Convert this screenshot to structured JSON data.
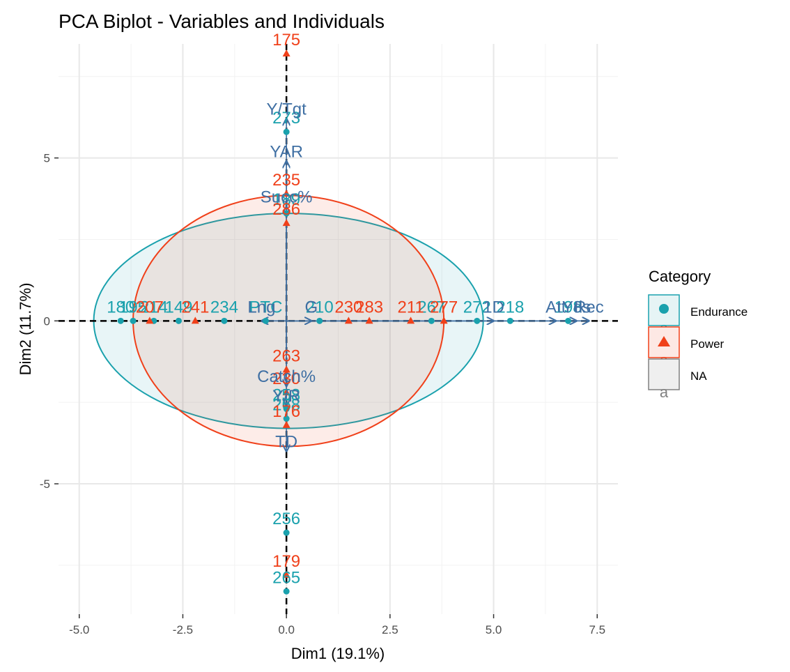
{
  "chart_data": {
    "type": "scatter",
    "title": "PCA Biplot - Variables and Individuals",
    "xlabel": "Dim1 (19.1%)",
    "ylabel": "Dim2 (11.7%)",
    "xlim": [
      -5.5,
      8.0
    ],
    "ylim": [
      -9.0,
      8.5
    ],
    "x_ticks": [
      -5.0,
      -2.5,
      0.0,
      2.5,
      5.0,
      7.5
    ],
    "x_tick_labels": [
      "-5.0",
      "-2.5",
      "0.0",
      "2.5",
      "5.0",
      "7.5"
    ],
    "y_ticks": [
      -5,
      0,
      5
    ],
    "y_tick_labels": [
      "-5",
      "0",
      "5"
    ],
    "grid": true,
    "legend": {
      "title": "Category",
      "position": "right",
      "entries": [
        {
          "name": "Endurance",
          "color": "#1aa1ad",
          "shape": "circle"
        },
        {
          "name": "Power",
          "color": "#f0401a",
          "shape": "triangle"
        },
        {
          "name": "NA",
          "color": "#808080",
          "shape": "none"
        }
      ]
    },
    "colors": {
      "Endurance": "#1aa1ad",
      "Power": "#f0401a",
      "variables": "#3f6fa3"
    },
    "ellipses": [
      {
        "group": "Endurance",
        "cx": 0.05,
        "cy": 0.0,
        "rx": 4.7,
        "ry": 3.3
      },
      {
        "group": "Power",
        "cx": 0.05,
        "cy": 0.0,
        "rx": 3.75,
        "ry": 3.85
      }
    ],
    "series": [
      {
        "name": "Endurance",
        "points": [
          {
            "x": 0.0,
            "y": 5.8,
            "label": "273"
          },
          {
            "x": 0.0,
            "y": 3.3,
            "label": "189"
          },
          {
            "x": 0.0,
            "y": -2.7,
            "label": "258"
          },
          {
            "x": 0.0,
            "y": -3.0,
            "label": "268"
          },
          {
            "x": 0.0,
            "y": -6.5,
            "label": "256"
          },
          {
            "x": 0.0,
            "y": -8.3,
            "label": "265"
          },
          {
            "x": -4.0,
            "y": 0.0,
            "label": "180"
          },
          {
            "x": -3.7,
            "y": 0.0,
            "label": "195"
          },
          {
            "x": -3.2,
            "y": 0.0,
            "label": "214"
          },
          {
            "x": -2.6,
            "y": 0.0,
            "label": "149"
          },
          {
            "x": -1.5,
            "y": 0.0,
            "label": "234"
          },
          {
            "x": -0.5,
            "y": 0.0,
            "label": "PTC"
          },
          {
            "x": 0.8,
            "y": 0.0,
            "label": "210"
          },
          {
            "x": 3.5,
            "y": 0.0,
            "label": "267"
          },
          {
            "x": 4.6,
            "y": 0.0,
            "label": "272"
          },
          {
            "x": 5.4,
            "y": 0.0,
            "label": "218"
          },
          {
            "x": 6.8,
            "y": 0.0,
            "label": "198"
          }
        ]
      },
      {
        "name": "Power",
        "points": [
          {
            "x": 0.0,
            "y": 8.2,
            "label": "175"
          },
          {
            "x": 0.0,
            "y": 3.9,
            "label": "235"
          },
          {
            "x": 0.0,
            "y": 3.0,
            "label": "286"
          },
          {
            "x": 0.0,
            "y": -1.5,
            "label": "263"
          },
          {
            "x": 0.0,
            "y": -2.2,
            "label": "230"
          },
          {
            "x": 0.0,
            "y": -3.2,
            "label": "176"
          },
          {
            "x": 0.0,
            "y": -7.8,
            "label": "179"
          },
          {
            "x": -3.3,
            "y": 0.0,
            "label": "207"
          },
          {
            "x": -2.2,
            "y": 0.0,
            "label": "241"
          },
          {
            "x": 1.5,
            "y": 0.0,
            "label": "230"
          },
          {
            "x": 2.0,
            "y": 0.0,
            "label": "283"
          },
          {
            "x": 3.0,
            "y": 0.0,
            "label": "211"
          },
          {
            "x": 3.8,
            "y": 0.0,
            "label": "277"
          }
        ]
      }
    ],
    "variables": [
      {
        "name": "Y/Tgt",
        "x": 0.0,
        "y": 6.2
      },
      {
        "name": "YAR",
        "x": 0.0,
        "y": 4.9
      },
      {
        "name": "Succ%",
        "x": 0.0,
        "y": 3.5
      },
      {
        "name": "Catch%",
        "x": 0.0,
        "y": -2.0
      },
      {
        "name": "Y/R",
        "x": 0.0,
        "y": -2.6
      },
      {
        "name": "TD",
        "x": 0.0,
        "y": -4.0
      },
      {
        "name": "1D",
        "x": 5.0,
        "y": 0.0
      },
      {
        "name": "Att",
        "x": 6.5,
        "y": 0.0
      },
      {
        "name": "Yds",
        "x": 7.0,
        "y": 0.0
      },
      {
        "name": "Rec",
        "x": 7.3,
        "y": 0.0
      },
      {
        "name": "Lng",
        "x": -0.6,
        "y": 0.0
      },
      {
        "name": "G",
        "x": 0.6,
        "y": 0.0
      }
    ]
  }
}
